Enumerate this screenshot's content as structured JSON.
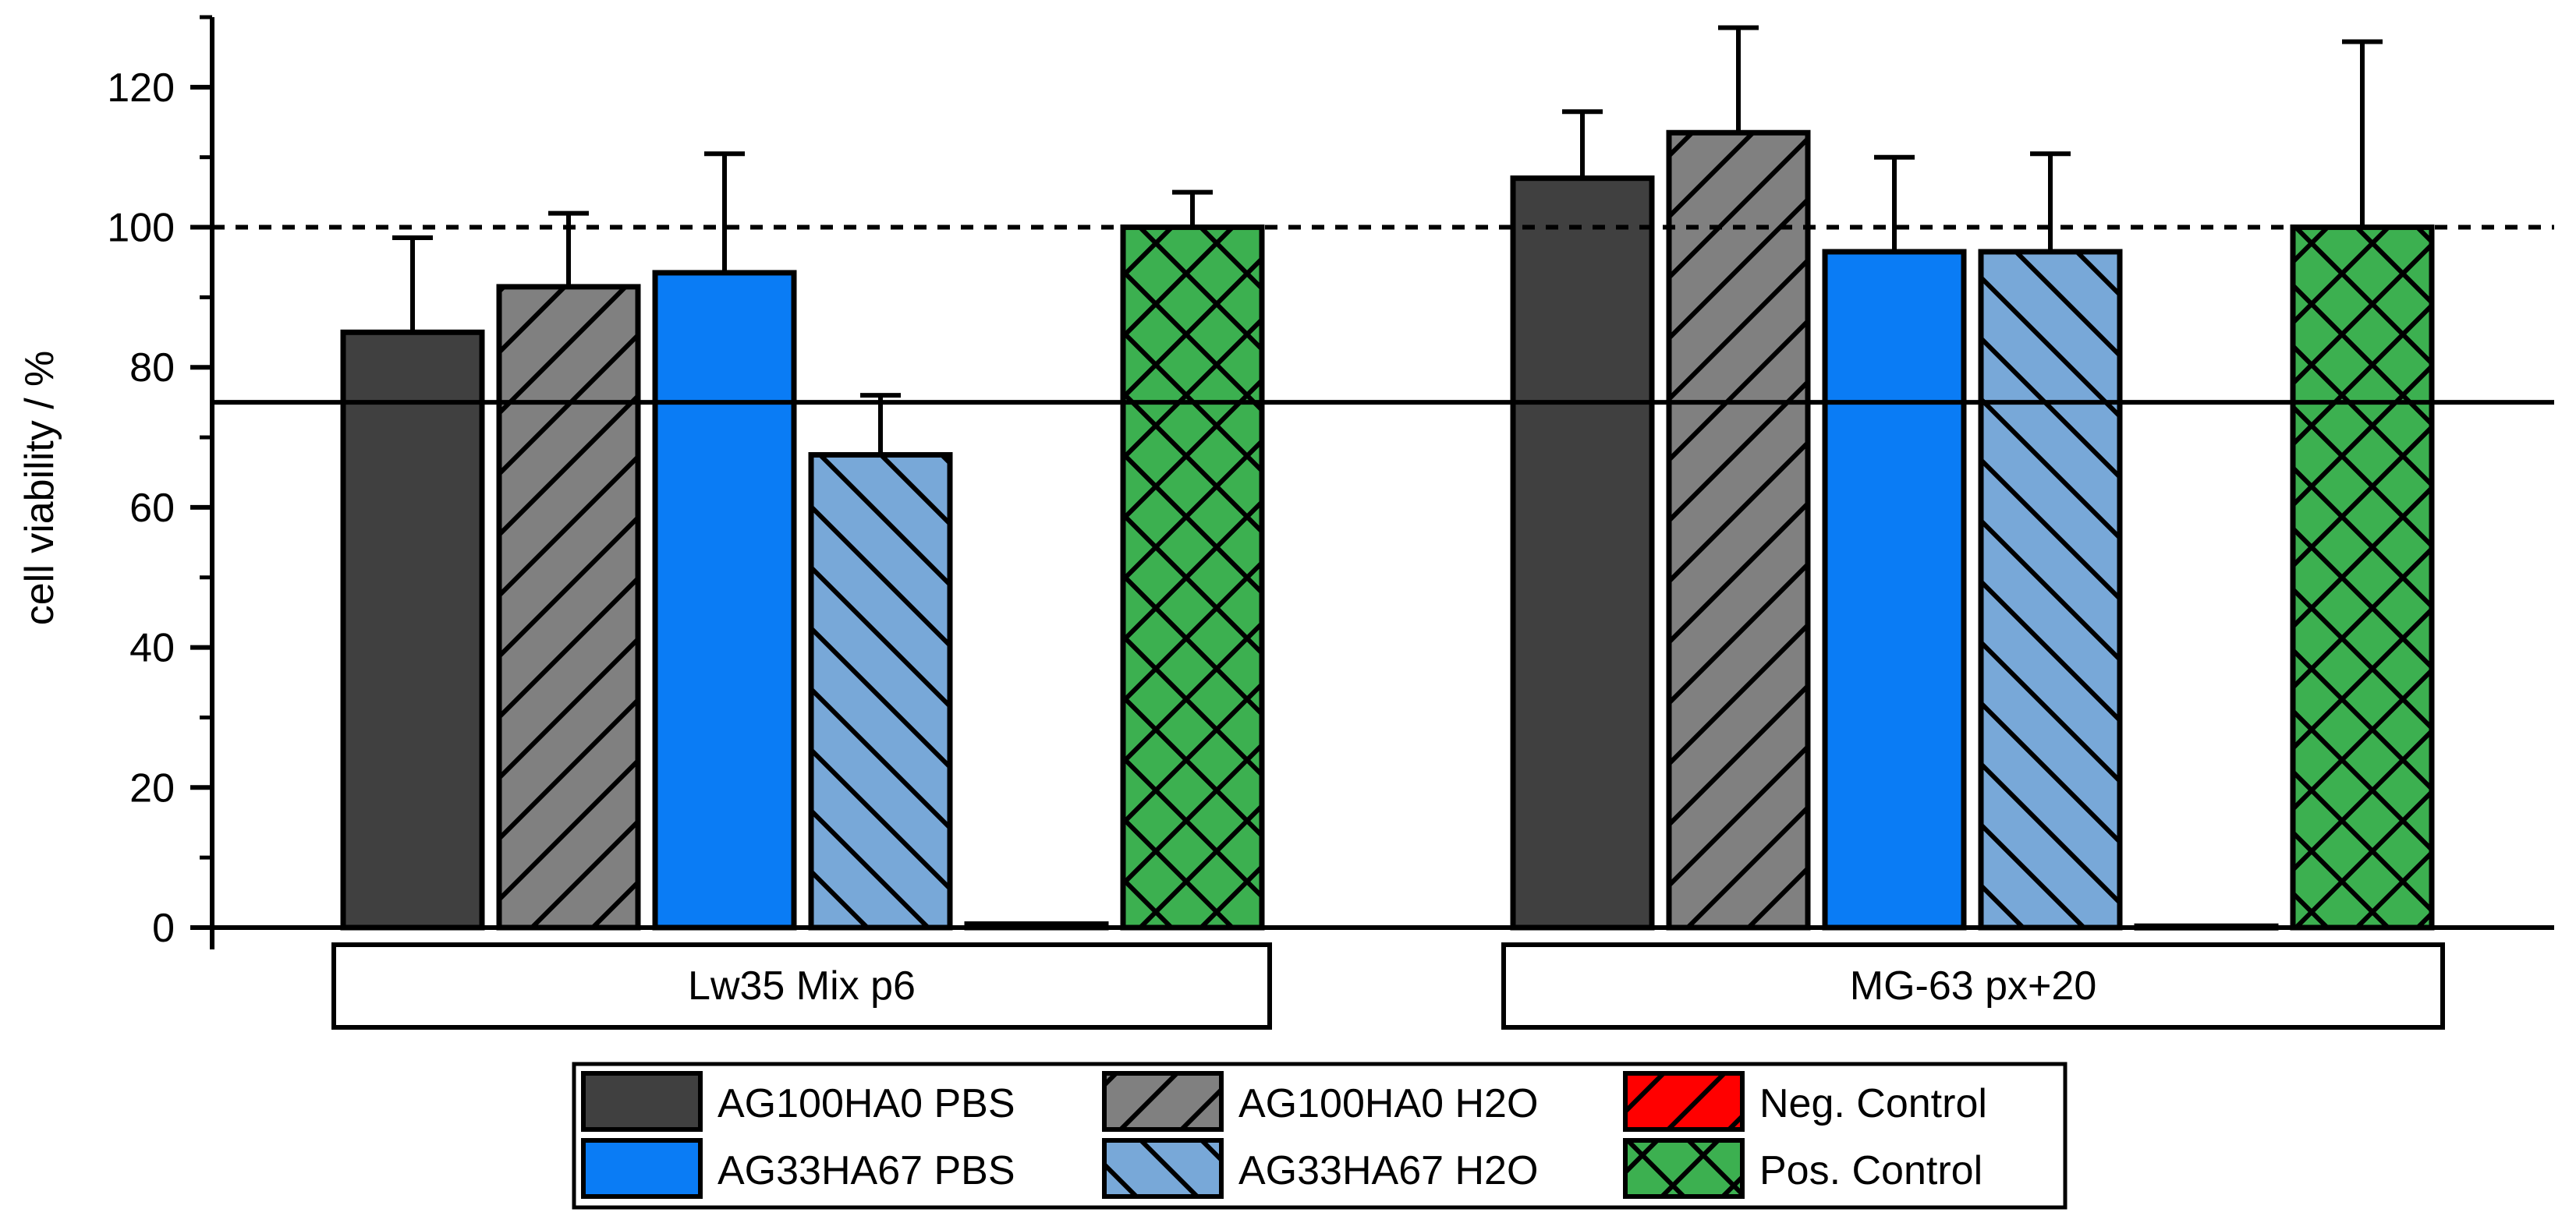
{
  "chart_data": {
    "type": "bar",
    "ylabel": "cell viability / %",
    "xlabel": "",
    "ylim": [
      0,
      130
    ],
    "yticks": [
      0,
      20,
      40,
      60,
      80,
      100,
      120
    ],
    "grid": false,
    "reference_lines": [
      {
        "value": 100,
        "style": "dashed"
      },
      {
        "value": 75,
        "style": "solid"
      }
    ],
    "categories": [
      "Lw35 Mix p6",
      "MG-63 px+20"
    ],
    "series": [
      {
        "name": "AG100HA0 PBS",
        "values": [
          85,
          107
        ],
        "errors": [
          13.5,
          9.5
        ],
        "color": "#404040",
        "pattern": "none"
      },
      {
        "name": "AG100HA0 H2O",
        "values": [
          91.5,
          113.5
        ],
        "errors": [
          10.5,
          15
        ],
        "color": "#808080",
        "pattern": "forward-hatch"
      },
      {
        "name": "AG33HA67 PBS",
        "values": [
          93.5,
          96.5
        ],
        "errors": [
          17,
          13.5
        ],
        "color": "#0a7cf5",
        "pattern": "none"
      },
      {
        "name": "AG33HA67 H2O",
        "values": [
          67.5,
          96.5
        ],
        "errors": [
          8.5,
          14
        ],
        "color": "#78a8d8",
        "pattern": "back-hatch"
      },
      {
        "name": "Neg. Control",
        "values": [
          0.5,
          0.2
        ],
        "errors": [
          0,
          0
        ],
        "color": "#ff0000",
        "pattern": "forward-hatch"
      },
      {
        "name": "Pos. Control",
        "values": [
          100,
          100
        ],
        "errors": [
          5,
          26.5
        ],
        "color": "#3cb050",
        "pattern": "crosshatch"
      }
    ],
    "legend_position": "bottom-center"
  }
}
